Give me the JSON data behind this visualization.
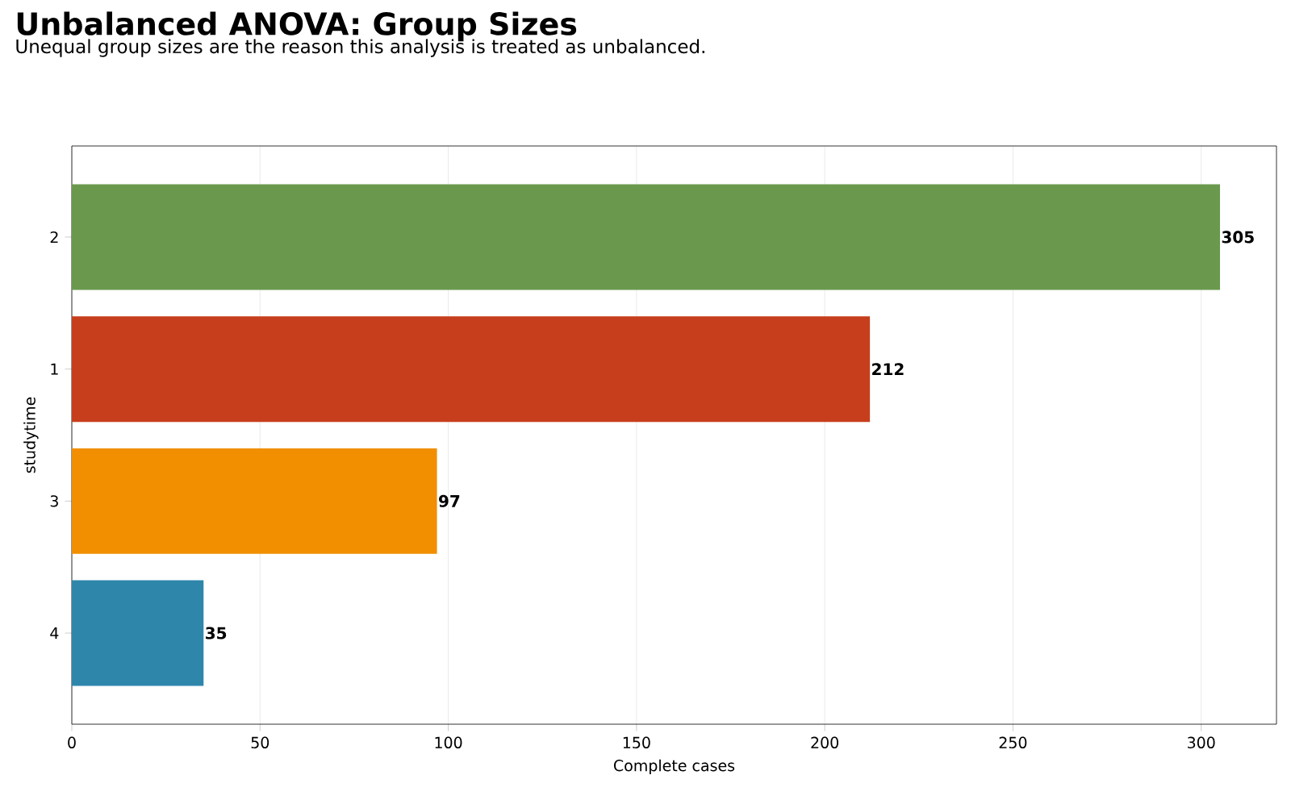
{
  "chart_data": {
    "type": "bar",
    "orientation": "horizontal",
    "title": "Unbalanced ANOVA: Group Sizes",
    "subtitle": "Unequal group sizes are the reason this analysis is treated as unbalanced.",
    "xlabel": "Complete cases",
    "ylabel": "studytime",
    "categories": [
      "2",
      "1",
      "3",
      "4"
    ],
    "values": [
      305,
      212,
      97,
      35
    ],
    "colors": [
      "#6a994e",
      "#c73e1d",
      "#f18f01",
      "#2e86ab"
    ],
    "xlim": [
      0,
      320
    ],
    "xticks": [
      0,
      50,
      100,
      150,
      200,
      250,
      300
    ],
    "grid": "x",
    "data_labels": true
  }
}
